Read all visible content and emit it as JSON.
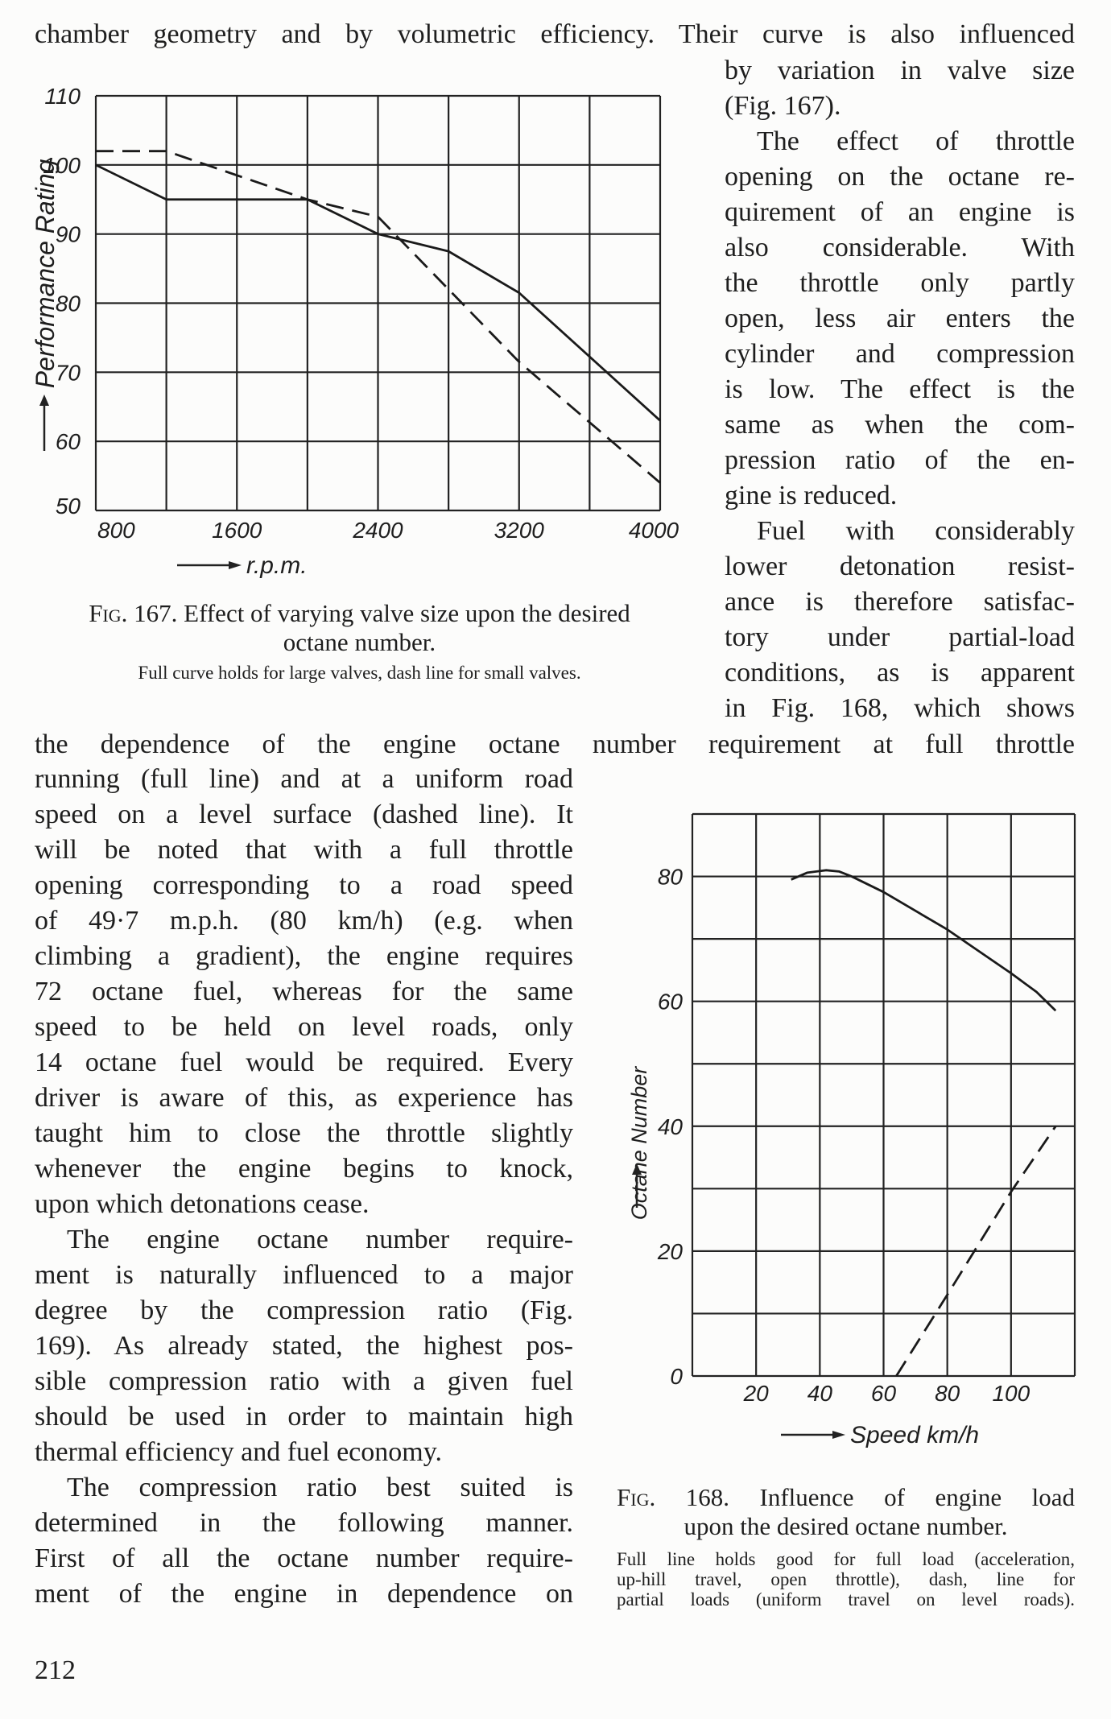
{
  "text": {
    "top_line": "chamber geometry and by volumetric efficiency. Their curve is also influenced",
    "right_column": [
      {
        "t": "by variation in valve size"
      },
      {
        "t": "(Fig. 167).",
        "last": true
      },
      {
        "t": "The effect of throttle",
        "ind": true
      },
      {
        "t": "opening on the octane re-"
      },
      {
        "t": "quirement of an engine is"
      },
      {
        "t": "also considerable. With"
      },
      {
        "t": "the throttle only partly"
      },
      {
        "t": "open, less air enters the"
      },
      {
        "t": "cylinder and compression"
      },
      {
        "t": "is low. The effect is the"
      },
      {
        "t": "same as when the com-"
      },
      {
        "t": "pression ratio of the en-"
      },
      {
        "t": "gine is reduced.",
        "last": true
      },
      {
        "t": "Fuel with considerably",
        "ind": true
      },
      {
        "t": "lower detonation resist-"
      },
      {
        "t": "ance is therefore satisfac-"
      },
      {
        "t": "tory under partial-load"
      },
      {
        "t": "conditions, as is apparent"
      },
      {
        "t": "in Fig. 168, which shows"
      }
    ],
    "full_line": "the dependence of the engine octane number requirement at full throttle",
    "left_column": [
      {
        "t": "running (full line) and at a uniform road"
      },
      {
        "t": "speed on a level surface (dashed line). It"
      },
      {
        "t": "will be noted that with a full throttle"
      },
      {
        "t": "opening corresponding to a road speed"
      },
      {
        "t": "of 49·7 m.p.h. (80 km/h) (e.g. when"
      },
      {
        "t": "climbing a gradient), the engine requires"
      },
      {
        "t": "72 octane fuel, whereas for the same"
      },
      {
        "t": "speed to be held on level roads, only"
      },
      {
        "t": "14 octane fuel would be required. Every"
      },
      {
        "t": "driver is aware of this, as experience has"
      },
      {
        "t": "taught him to close the throttle slightly"
      },
      {
        "t": "whenever the engine begins to knock,"
      },
      {
        "t": "upon which detonations cease.",
        "last": true
      },
      {
        "t": "The engine octane number require-",
        "ind": true
      },
      {
        "t": "ment is naturally influenced to a major"
      },
      {
        "t": "degree by the compression ratio (Fig."
      },
      {
        "t": "169). As already stated, the highest pos-"
      },
      {
        "t": "sible compression ratio with a given fuel"
      },
      {
        "t": "should be used in order to maintain high"
      },
      {
        "t": "thermal efficiency and fuel economy.",
        "last": true
      },
      {
        "t": "The compression ratio best suited is",
        "ind": true
      },
      {
        "t": "determined in the following manner."
      },
      {
        "t": "First of all the octane number require-"
      },
      {
        "t": "ment of the engine in dependence on"
      }
    ],
    "page_number": "212"
  },
  "fig167": {
    "label": "Fig. 167.",
    "title_line1": "Effect of varying valve size upon the desired",
    "title_line2": "octane number.",
    "note": "Full curve holds for large valves, dash line for small valves."
  },
  "fig168": {
    "label": "Fig. 168.",
    "title_line1": "Influence of engine load",
    "title_line2": "upon the desired octane number.",
    "note_lines": [
      "Full line holds good for full load (acceleration,",
      "up-hill travel, open throttle), dash, line for",
      "partial loads (uniform travel on level roads)."
    ]
  },
  "chart_data": [
    {
      "type": "line",
      "title": "Fig. 167",
      "xlabel": "r.p.m.",
      "ylabel": "Performance Rating",
      "xlim": [
        800,
        4000
      ],
      "ylim": [
        50,
        110
      ],
      "x_grid_step": 400,
      "y_grid_step": 10,
      "x_tick_labels": [
        "800",
        "1600",
        "2400",
        "3200",
        "4000"
      ],
      "x_tick_values": [
        800,
        1600,
        2400,
        3200,
        4000
      ],
      "y_tick_labels": [
        "50",
        "60",
        "70",
        "80",
        "90",
        "100",
        "110"
      ],
      "y_tick_values": [
        50,
        60,
        70,
        80,
        90,
        100,
        110
      ],
      "grid": true,
      "series": [
        {
          "name": "large valves (full curve)",
          "style": "solid",
          "x": [
            800,
            1200,
            2000,
            2400,
            2800,
            3200,
            4000
          ],
          "y": [
            100,
            95,
            95,
            90,
            87.5,
            81.5,
            63
          ]
        },
        {
          "name": "small valves (dash line)",
          "style": "dashed",
          "x": [
            800,
            1200,
            2000,
            2400,
            2800,
            3200,
            4000
          ],
          "y": [
            102,
            102,
            95,
            92.5,
            82,
            71.5,
            54
          ]
        }
      ]
    },
    {
      "type": "line",
      "title": "Fig. 168",
      "xlabel": "Speed km/h",
      "ylabel": "Octane Number",
      "xlim": [
        0,
        120
      ],
      "ylim": [
        0,
        90
      ],
      "x_grid_step": 20,
      "y_grid_step": 10,
      "x_tick_labels": [
        "20",
        "40",
        "60",
        "80",
        "100"
      ],
      "x_tick_values": [
        20,
        40,
        60,
        80,
        100
      ],
      "y_tick_labels": [
        "0",
        "20",
        "40",
        "60",
        "80"
      ],
      "y_tick_values": [
        0,
        20,
        40,
        60,
        80
      ],
      "grid": true,
      "series": [
        {
          "name": "full load (full line)",
          "style": "solid",
          "x": [
            31,
            36,
            42,
            46,
            50,
            60,
            70,
            80,
            90,
            100,
            108,
            114
          ],
          "y": [
            79.5,
            80.6,
            81,
            80.8,
            80,
            77.5,
            74.5,
            71.5,
            68,
            64.5,
            61.5,
            58.5
          ]
        },
        {
          "name": "partial load (dashed line)",
          "style": "dashed",
          "x": [
            64,
            80,
            100,
            114
          ],
          "y": [
            0,
            13,
            29.5,
            40
          ]
        }
      ]
    }
  ],
  "colors": {
    "ink": "#1e1e1e",
    "paper": "#fcfcfb"
  }
}
